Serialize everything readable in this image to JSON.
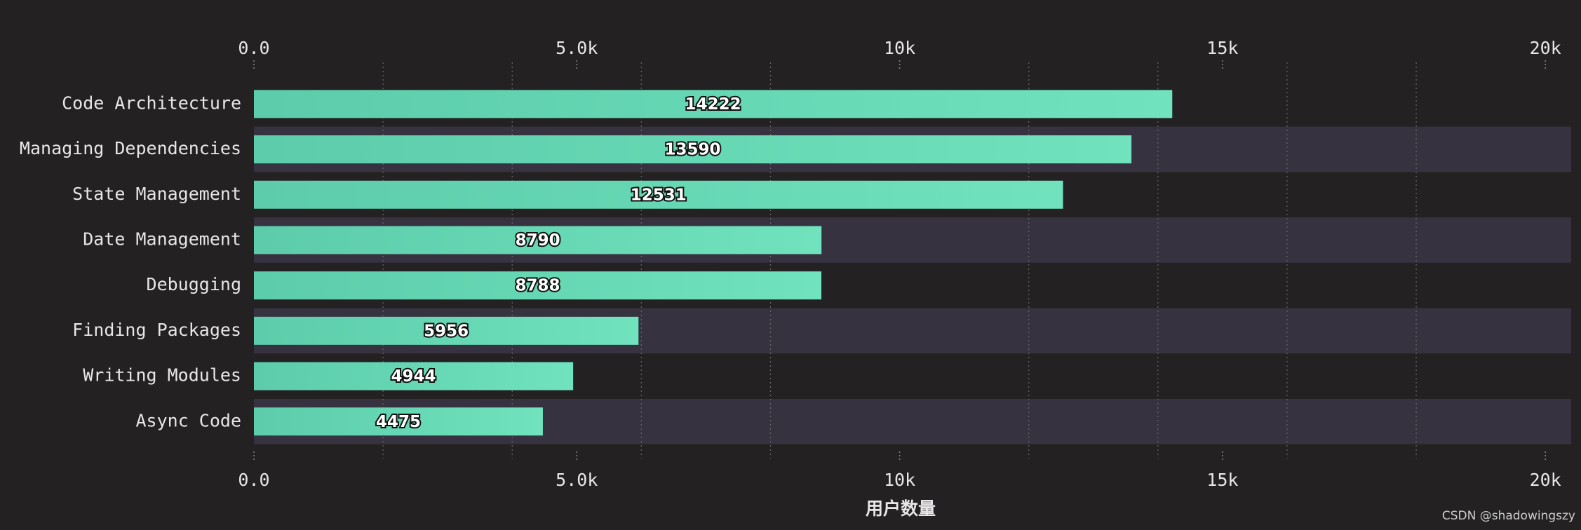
{
  "chart_data": {
    "type": "bar",
    "orientation": "horizontal",
    "categories": [
      "Code Architecture",
      "Managing Dependencies",
      "State Management",
      "Date Management",
      "Debugging",
      "Finding Packages",
      "Writing Modules",
      "Async Code"
    ],
    "values": [
      14222,
      13590,
      12531,
      8790,
      8788,
      5956,
      4944,
      4475
    ],
    "color": "#64d8b2",
    "xlabel": "用户数量",
    "xlim": [
      0,
      20400
    ],
    "xticks": [
      {
        "value": 0,
        "label": "0.0"
      },
      {
        "value": 5000,
        "label": "5.0k"
      },
      {
        "value": 10000,
        "label": "10k"
      },
      {
        "value": 15000,
        "label": "15k"
      },
      {
        "value": 20000,
        "label": "20k"
      }
    ],
    "xminorticks": [
      2000,
      4000,
      6000,
      8000,
      12000,
      14000,
      16000,
      18000
    ],
    "grid": true,
    "watermark": "CSDN @shadowingszy"
  }
}
